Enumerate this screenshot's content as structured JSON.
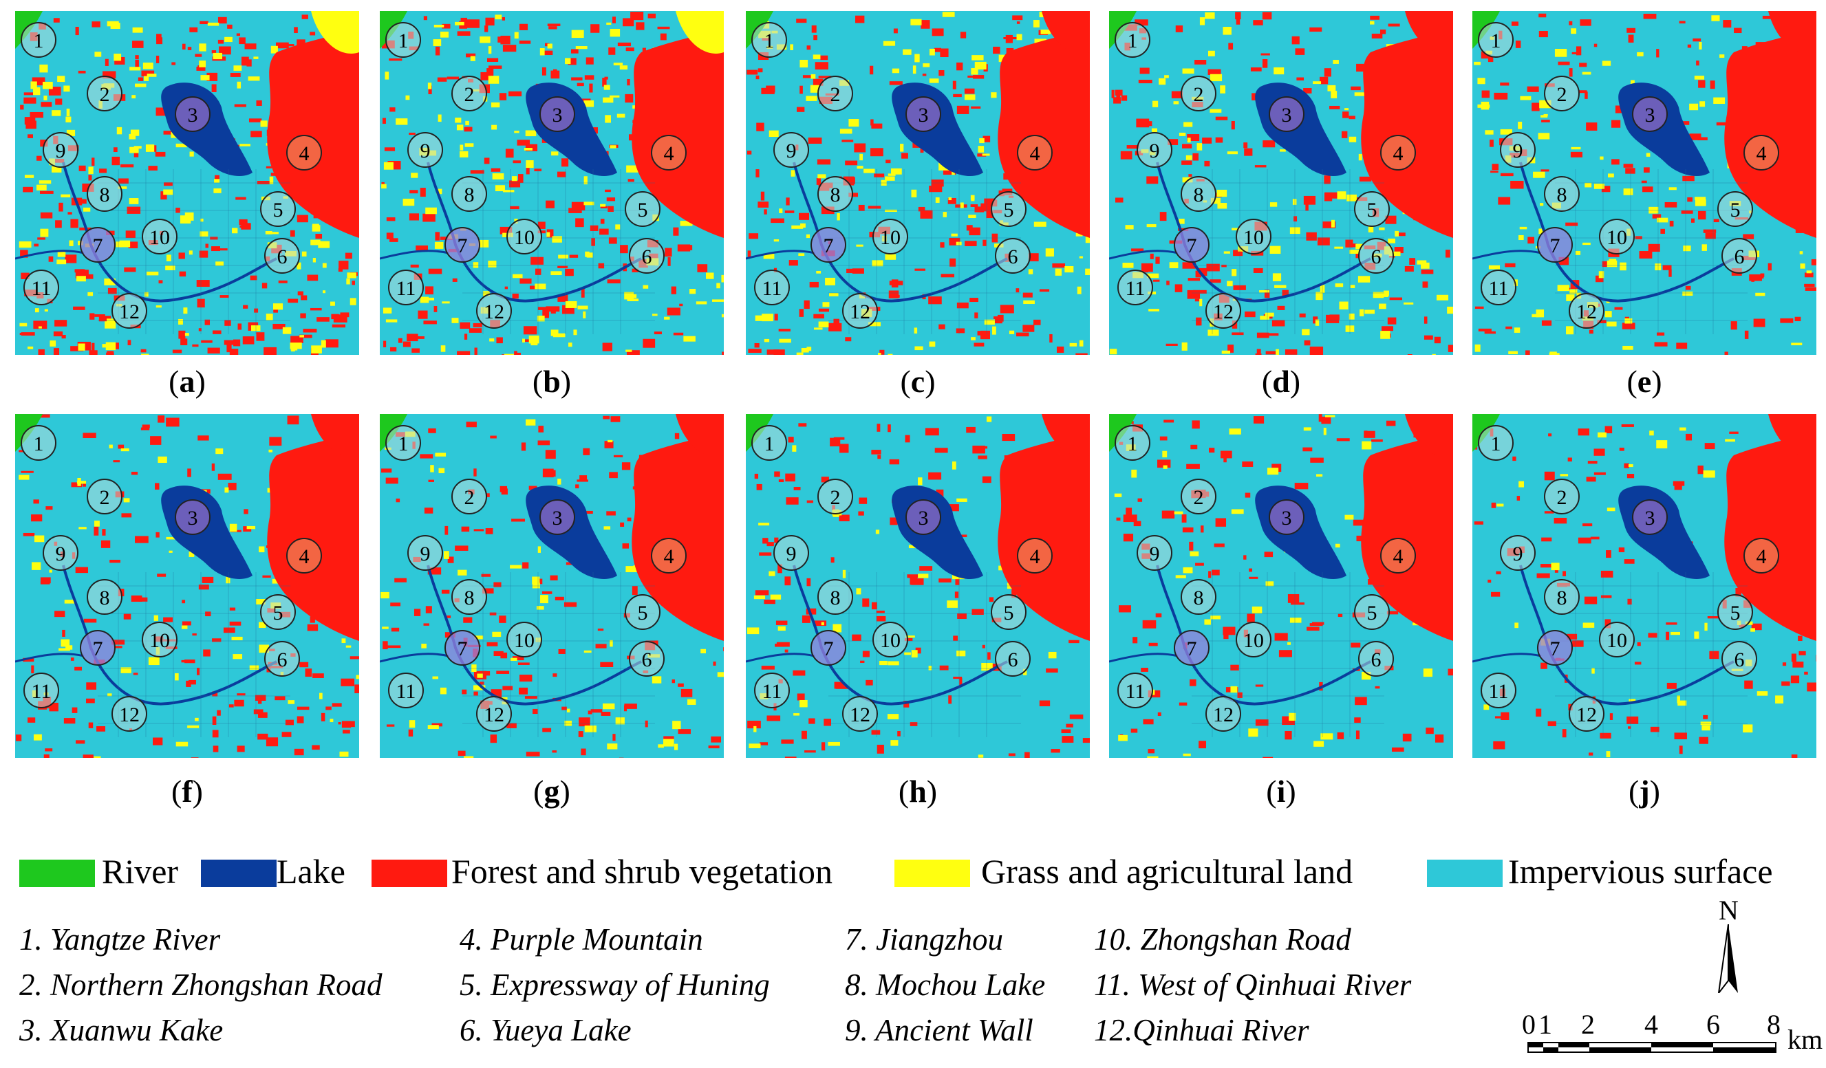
{
  "panels": [
    {
      "label": "a",
      "background": "#2ec8d8"
    },
    {
      "label": "b",
      "background": "#2ec8d8"
    },
    {
      "label": "c",
      "background": "#2ec8d8"
    },
    {
      "label": "d",
      "background": "#2ec8d8"
    },
    {
      "label": "e",
      "background": "#2ec8d8"
    },
    {
      "label": "f",
      "background": "#2ec8d8"
    },
    {
      "label": "g",
      "background": "#2ec8d8"
    },
    {
      "label": "h",
      "background": "#2ec8d8"
    },
    {
      "label": "i",
      "background": "#2ec8d8"
    },
    {
      "label": "j",
      "background": "#2ec8d8"
    }
  ],
  "markers": [
    "1",
    "2",
    "3",
    "4",
    "5",
    "6",
    "7",
    "8",
    "9",
    "10",
    "11",
    "12"
  ],
  "legend": [
    {
      "label": "River",
      "color": "#1ec81e"
    },
    {
      "label": "Lake",
      "color": "#0a3c9c"
    },
    {
      "label": "Forest and shrub vegetation",
      "color": "#ff1a10"
    },
    {
      "label": "Grass and agricultural land",
      "color": "#ffff10"
    },
    {
      "label": "Impervious surface",
      "color": "#2ec8d8"
    }
  ],
  "places": [
    "1. Yangtze River",
    "2. Northern Zhongshan Road",
    "3. Xuanwu Kake",
    "4. Purple Mountain",
    "5. Expressway of Huning",
    "6. Yueya Lake",
    "7. Jiangzhou",
    "8. Mochou Lake",
    "9. Ancient Wall",
    "10. Zhongshan Road",
    "11. West of Qinhuai River",
    "12.Qinhuai River"
  ],
  "scale": {
    "ticks": [
      "0",
      "1",
      "2",
      "4",
      "6",
      "8"
    ],
    "unit": "km",
    "north": "N"
  }
}
